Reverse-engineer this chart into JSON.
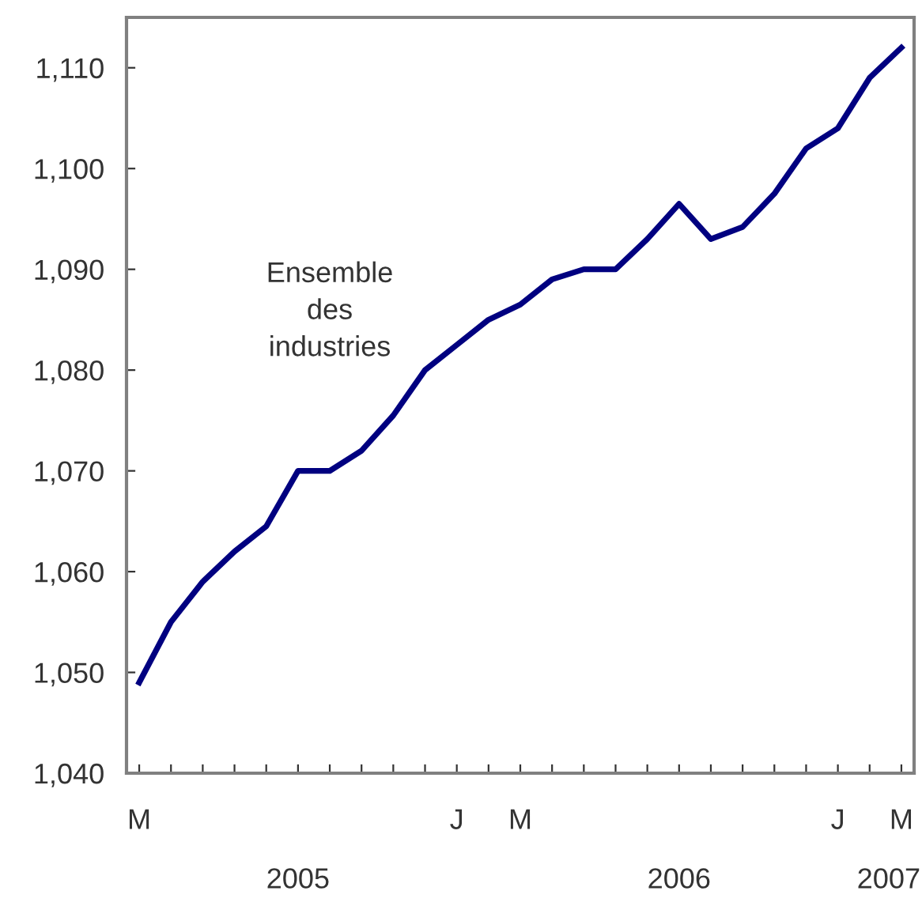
{
  "chart_data": {
    "type": "line",
    "categories": [
      "M",
      null,
      null,
      null,
      null,
      null,
      null,
      null,
      null,
      null,
      "J",
      null,
      "M",
      null,
      null,
      null,
      null,
      null,
      null,
      null,
      null,
      null,
      "J",
      null,
      "M"
    ],
    "series": [
      {
        "name": "Ensemble des industries",
        "color": "#000080",
        "values": [
          1049,
          1055,
          1059,
          1062,
          1064.5,
          1070,
          1070,
          1072,
          1075.5,
          1080,
          1082.5,
          1085,
          1086.5,
          1089,
          1090,
          1090,
          1093,
          1096.5,
          1093,
          1094.2,
          1097.5,
          1102,
          1104,
          1109,
          1112
        ]
      }
    ],
    "ylim": [
      1040,
      1115
    ],
    "yticks": [
      {
        "value": 1040,
        "label": "1,040"
      },
      {
        "value": 1050,
        "label": "1,050"
      },
      {
        "value": 1060,
        "label": "1,060"
      },
      {
        "value": 1070,
        "label": "1,070"
      },
      {
        "value": 1080,
        "label": "1,080"
      },
      {
        "value": 1090,
        "label": "1,090"
      },
      {
        "value": 1100,
        "label": "1,100"
      },
      {
        "value": 1110,
        "label": "1,110"
      }
    ],
    "annotations": [
      "2005",
      "2006",
      "2007"
    ],
    "grid": false,
    "legend": false,
    "marker": "none",
    "line_style": "solid"
  }
}
